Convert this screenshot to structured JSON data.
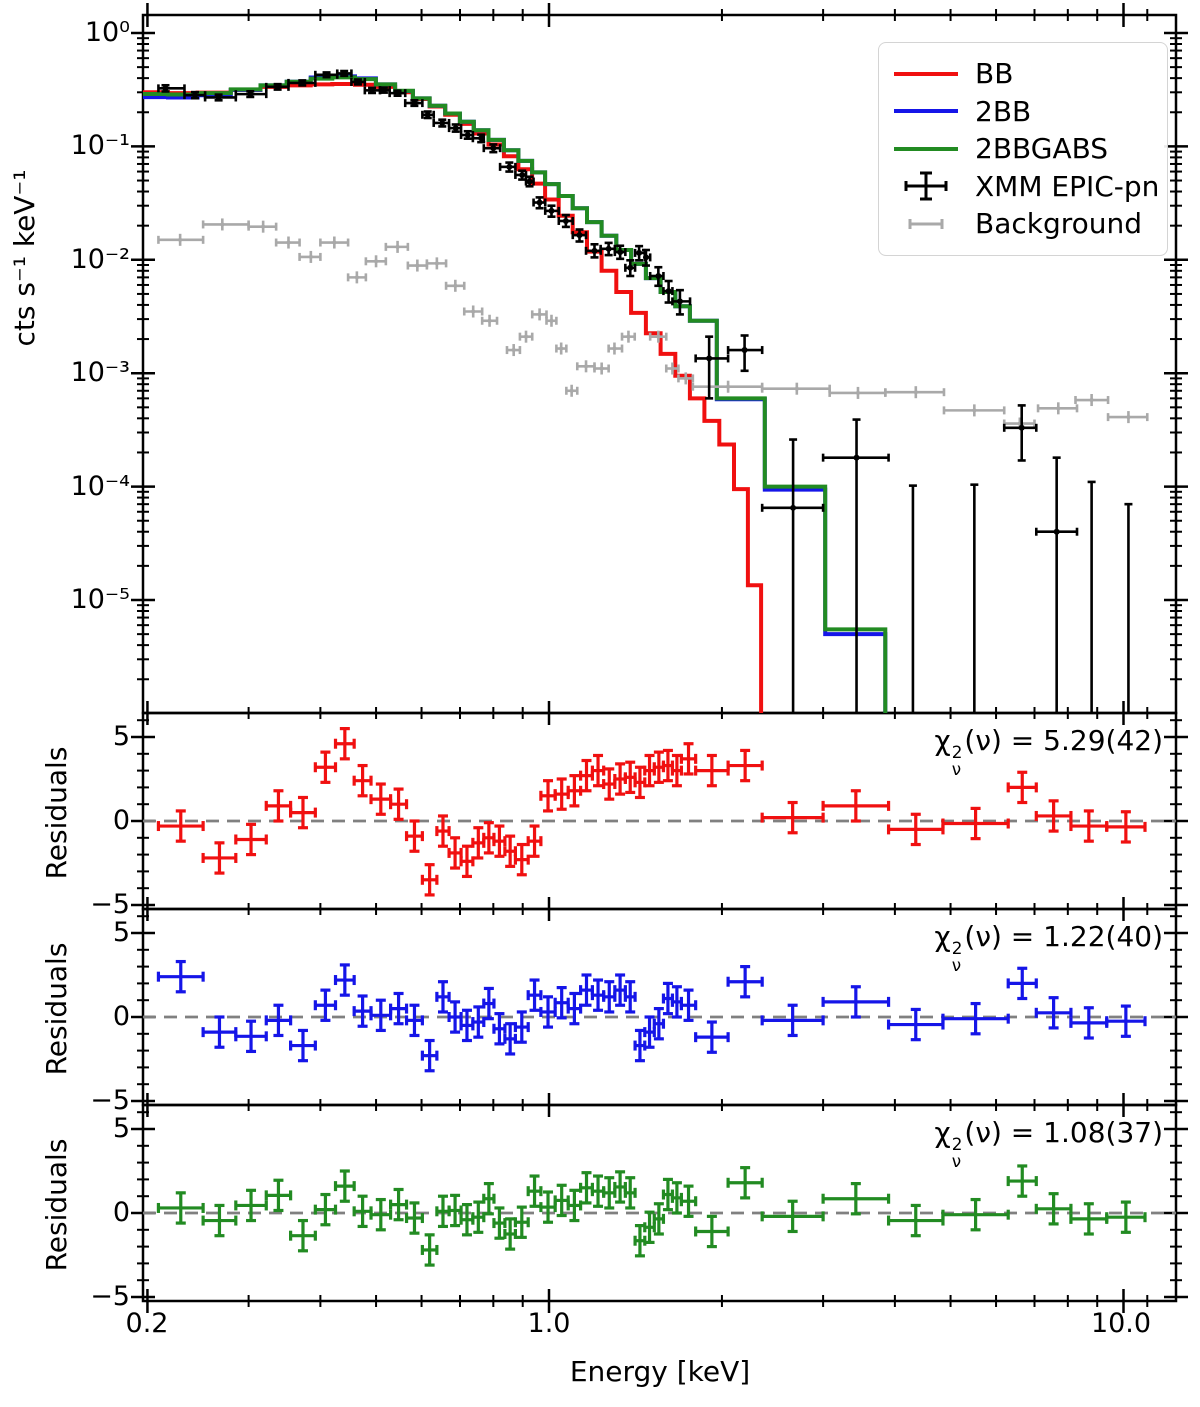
{
  "axes": {
    "xlabel": "Energy [keV]",
    "main_ylabel": "cts s⁻¹ keV⁻¹",
    "residual_ylabel": "Residuals",
    "x_tick_labels": [
      "0.2",
      "1.0",
      "10.0"
    ],
    "main_y_tick_labels": [
      "10⁰",
      "10⁻¹",
      "10⁻²",
      "10⁻³",
      "10⁻⁴",
      "10⁻⁵"
    ],
    "residual_y_tick_labels": [
      "5",
      "0",
      "−5"
    ]
  },
  "legend": {
    "items": [
      {
        "label": "BB",
        "color": "#f01010",
        "glyph": "line"
      },
      {
        "label": "2BB",
        "color": "#1515e8",
        "glyph": "line"
      },
      {
        "label": "2BBGABS",
        "color": "#228b22",
        "glyph": "line"
      },
      {
        "label": "XMM EPIC-pn",
        "color": "#000000",
        "glyph": "errorbar-cross"
      },
      {
        "label": "Background",
        "color": "#a9a9a9",
        "glyph": "errorbar-small"
      }
    ]
  },
  "panels": [
    {
      "chi": "χ",
      "sup": "2",
      "sub": "ν",
      "text": "(ν) = 5.29(42)"
    },
    {
      "chi": "χ",
      "sup": "2",
      "sub": "ν",
      "text": "(ν) = 1.22(40)"
    },
    {
      "chi": "χ",
      "sup": "2",
      "sub": "ν",
      "text": "(ν) = 1.08(37)"
    }
  ],
  "chart_data": {
    "type": "line",
    "description": "X-ray spectrum (log-log) with three model curves, source and background errorbar data, plus three residual sub-panels sharing the log energy axis",
    "x_axis": {
      "label": "Energy [keV]",
      "scale": "log",
      "range": [
        0.196,
        11.6
      ],
      "major_ticks": [
        0.2,
        1.0,
        10.0
      ]
    },
    "main_panel": {
      "ylabel": "cts s⁻¹ keV⁻¹",
      "scale": "log",
      "ylim": [
        1e-06,
        1.44
      ],
      "major_ticks": [
        1,
        0.1,
        0.01,
        0.001,
        0.0001,
        1e-05
      ]
    },
    "colors": {
      "bb": "#f01010",
      "bb2": "#1515e8",
      "bb2gabs": "#228b22",
      "data": "#000000",
      "background": "#a9a9a9",
      "zero_line": "#808080"
    },
    "models": [
      {
        "name": "BB",
        "color": "#f01010",
        "end": 2.34,
        "E": [
          0.205,
          0.23,
          0.26,
          0.3,
          0.33,
          0.37,
          0.4,
          0.44,
          0.48,
          0.52,
          0.56,
          0.6,
          0.64,
          0.68,
          0.72,
          0.76,
          0.81,
          0.86,
          0.91,
          0.96,
          1.01,
          1.07,
          1.13,
          1.2,
          1.27,
          1.35,
          1.43,
          1.52,
          1.61,
          1.71,
          1.81,
          1.92,
          2.04,
          2.16,
          2.28
        ],
        "F": [
          0.3,
          0.295,
          0.298,
          0.315,
          0.335,
          0.345,
          0.352,
          0.355,
          0.35,
          0.335,
          0.3,
          0.262,
          0.225,
          0.19,
          0.158,
          0.13,
          0.104,
          0.082,
          0.063,
          0.047,
          0.034,
          0.0245,
          0.0175,
          0.0118,
          0.008,
          0.0052,
          0.0034,
          0.00225,
          0.00148,
          0.00095,
          0.0006,
          0.00038,
          0.000235,
          9.5e-05,
          1.35e-05
        ]
      },
      {
        "name": "2BB",
        "color": "#1515e8",
        "end": 3.85,
        "E": [
          0.205,
          0.23,
          0.26,
          0.3,
          0.33,
          0.37,
          0.4,
          0.44,
          0.48,
          0.52,
          0.56,
          0.6,
          0.64,
          0.68,
          0.72,
          0.76,
          0.81,
          0.86,
          0.91,
          0.96,
          1.01,
          1.07,
          1.13,
          1.2,
          1.27,
          1.35,
          1.43,
          1.52,
          1.61,
          1.71,
          1.81,
          2.12,
          2.66,
          3.44
        ],
        "F": [
          0.272,
          0.27,
          0.283,
          0.315,
          0.345,
          0.372,
          0.405,
          0.414,
          0.398,
          0.352,
          0.308,
          0.265,
          0.228,
          0.195,
          0.165,
          0.139,
          0.114,
          0.0925,
          0.0745,
          0.059,
          0.0465,
          0.0365,
          0.0285,
          0.0215,
          0.0163,
          0.0122,
          0.0092,
          0.0069,
          0.0052,
          0.0039,
          0.0029,
          0.00059,
          9.4e-05,
          5e-06
        ]
      },
      {
        "name": "2BBGABS",
        "color": "#228b22",
        "end": 3.85,
        "E": [
          0.205,
          0.23,
          0.26,
          0.3,
          0.33,
          0.37,
          0.4,
          0.44,
          0.48,
          0.52,
          0.56,
          0.6,
          0.64,
          0.68,
          0.72,
          0.76,
          0.81,
          0.86,
          0.91,
          0.96,
          1.01,
          1.07,
          1.13,
          1.2,
          1.27,
          1.35,
          1.43,
          1.52,
          1.61,
          1.71,
          1.81,
          2.12,
          2.66,
          3.44
        ],
        "F": [
          0.29,
          0.287,
          0.295,
          0.318,
          0.345,
          0.372,
          0.396,
          0.406,
          0.392,
          0.352,
          0.31,
          0.265,
          0.228,
          0.195,
          0.165,
          0.139,
          0.114,
          0.0925,
          0.0745,
          0.059,
          0.0465,
          0.0365,
          0.0285,
          0.0215,
          0.0163,
          0.0122,
          0.0092,
          0.0069,
          0.0052,
          0.0039,
          0.0029,
          0.0006,
          0.0001,
          5.5e-06
        ]
      }
    ],
    "source": {
      "name": "XMM EPIC-pn",
      "points": [
        [
          0.209,
          0.215,
          0.232,
          0.305,
          0.325,
          0.346
        ],
        [
          0.232,
          0.242,
          0.252,
          0.266,
          0.283,
          0.301
        ],
        [
          0.252,
          0.266,
          0.285,
          0.255,
          0.27,
          0.286
        ],
        [
          0.285,
          0.302,
          0.322,
          0.273,
          0.289,
          0.306
        ],
        [
          0.322,
          0.337,
          0.352,
          0.317,
          0.335,
          0.354
        ],
        [
          0.352,
          0.372,
          0.392,
          0.345,
          0.363,
          0.382
        ],
        [
          0.392,
          0.41,
          0.428,
          0.408,
          0.428,
          0.449
        ],
        [
          0.428,
          0.44,
          0.453,
          0.419,
          0.44,
          0.462
        ],
        [
          0.453,
          0.465,
          0.478,
          0.352,
          0.37,
          0.389
        ],
        [
          0.478,
          0.492,
          0.508,
          0.296,
          0.312,
          0.328
        ],
        [
          0.508,
          0.516,
          0.528,
          0.298,
          0.314,
          0.33
        ],
        [
          0.528,
          0.545,
          0.562,
          0.28,
          0.295,
          0.31
        ],
        [
          0.562,
          0.583,
          0.602,
          0.228,
          0.241,
          0.255
        ],
        [
          0.602,
          0.615,
          0.63,
          0.178,
          0.19,
          0.203
        ],
        [
          0.63,
          0.652,
          0.67,
          0.15,
          0.161,
          0.172
        ],
        [
          0.67,
          0.688,
          0.703,
          0.135,
          0.145,
          0.156
        ],
        [
          0.703,
          0.722,
          0.737,
          0.117,
          0.126,
          0.136
        ],
        [
          0.737,
          0.762,
          0.77,
          0.109,
          0.118,
          0.127
        ],
        [
          0.77,
          0.8,
          0.822,
          0.089,
          0.0965,
          0.104
        ],
        [
          0.822,
          0.853,
          0.874,
          0.06,
          0.066,
          0.072
        ],
        [
          0.874,
          0.898,
          0.912,
          0.051,
          0.056,
          0.061
        ],
        [
          0.912,
          0.925,
          0.94,
          0.0445,
          0.049,
          0.054
        ],
        [
          0.94,
          0.963,
          0.985,
          0.0285,
          0.032,
          0.0355
        ],
        [
          0.985,
          1.01,
          1.04,
          0.024,
          0.027,
          0.03
        ],
        [
          1.04,
          1.07,
          1.1,
          0.0195,
          0.022,
          0.0248
        ],
        [
          1.1,
          1.13,
          1.16,
          0.0145,
          0.0165,
          0.0185
        ],
        [
          1.16,
          1.2,
          1.23,
          0.0105,
          0.012,
          0.0137
        ],
        [
          1.23,
          1.27,
          1.302,
          0.011,
          0.0125,
          0.0141
        ],
        [
          1.302,
          1.33,
          1.358,
          0.0102,
          0.0117,
          0.0133
        ],
        [
          1.358,
          1.385,
          1.412,
          0.0072,
          0.0085,
          0.0099
        ],
        [
          1.412,
          1.435,
          1.468,
          0.0099,
          0.0115,
          0.0132
        ],
        [
          1.468,
          1.475,
          1.5,
          0.0089,
          0.0105,
          0.0122
        ],
        [
          1.5,
          1.55,
          1.582,
          0.0059,
          0.0072,
          0.0086
        ],
        [
          1.582,
          1.615,
          1.64,
          0.0042,
          0.0053,
          0.0065
        ],
        [
          1.64,
          1.69,
          1.76,
          0.0033,
          0.0043,
          0.0054
        ],
        [
          1.8,
          1.9,
          2.05,
          0.0006,
          0.00135,
          0.0021
        ],
        [
          2.05,
          2.19,
          2.35,
          0.00105,
          0.0016,
          0.00215
        ],
        [
          2.35,
          2.66,
          3.0,
          1e-07,
          6.5e-05,
          0.00026
        ],
        [
          3.0,
          3.43,
          3.9,
          1e-07,
          0.00018,
          0.00039
        ],
        [
          6.2,
          6.65,
          7.05,
          0.00017,
          0.00033,
          0.00052
        ],
        [
          7.05,
          7.65,
          8.3,
          1e-07,
          4e-05,
          0.00018
        ]
      ],
      "limit_lines": [
        [
          4.3,
          0.000102
        ],
        [
          5.5,
          0.000104
        ],
        [
          8.8,
          0.00011
        ],
        [
          10.2,
          7e-05
        ]
      ]
    },
    "background": {
      "name": "Background",
      "points": [
        [
          0.209,
          0.228,
          0.25,
          0.015
        ],
        [
          0.25,
          0.27,
          0.3,
          0.0205
        ],
        [
          0.3,
          0.318,
          0.335,
          0.0196
        ],
        [
          0.335,
          0.352,
          0.368,
          0.0142
        ],
        [
          0.368,
          0.385,
          0.4,
          0.0106
        ],
        [
          0.4,
          0.423,
          0.447,
          0.0142
        ],
        [
          0.447,
          0.463,
          0.48,
          0.007
        ],
        [
          0.48,
          0.5,
          0.52,
          0.0097
        ],
        [
          0.52,
          0.545,
          0.568,
          0.013
        ],
        [
          0.568,
          0.59,
          0.613,
          0.0089
        ],
        [
          0.613,
          0.638,
          0.662,
          0.0093
        ],
        [
          0.662,
          0.687,
          0.712,
          0.0059
        ],
        [
          0.712,
          0.738,
          0.765,
          0.0035
        ],
        [
          0.765,
          0.788,
          0.812,
          0.0029
        ],
        [
          0.845,
          0.868,
          0.89,
          0.0016
        ],
        [
          0.89,
          0.912,
          0.935,
          0.0021
        ],
        [
          0.935,
          0.963,
          0.99,
          0.0033
        ],
        [
          0.99,
          1.01,
          1.03,
          0.0029
        ],
        [
          1.03,
          1.05,
          1.072,
          0.00165
        ],
        [
          1.072,
          1.095,
          1.12,
          0.0007
        ],
        [
          1.12,
          1.16,
          1.2,
          0.00115
        ],
        [
          1.2,
          1.235,
          1.27,
          0.0011
        ],
        [
          1.27,
          1.3,
          1.34,
          0.00165
        ],
        [
          1.34,
          1.375,
          1.41,
          0.0021
        ],
        [
          1.5,
          1.55,
          1.6,
          0.0021
        ],
        [
          1.6,
          1.64,
          1.68,
          0.0011
        ],
        [
          1.68,
          1.73,
          1.78,
          0.0009
        ],
        [
          1.78,
          2.05,
          2.35,
          0.00076
        ],
        [
          2.35,
          2.7,
          3.08,
          0.00073
        ],
        [
          3.08,
          3.45,
          3.85,
          0.00067
        ],
        [
          3.85,
          4.35,
          4.87,
          0.00068
        ],
        [
          4.87,
          5.5,
          6.2,
          0.00047
        ],
        [
          6.2,
          6.6,
          7.0,
          0.00036
        ],
        [
          7.1,
          7.7,
          8.3,
          0.00049
        ],
        [
          8.25,
          8.8,
          9.4,
          0.00058
        ],
        [
          9.4,
          10.2,
          11.0,
          0.00041
        ]
      ]
    },
    "residuals": {
      "ylim": [
        -6.4,
        5.2
      ],
      "major_ticks": [
        5,
        0,
        -5
      ],
      "bins": [
        [
          0.209,
          0.25
        ],
        [
          0.25,
          0.285
        ],
        [
          0.285,
          0.322
        ],
        [
          0.322,
          0.355
        ],
        [
          0.355,
          0.392
        ],
        [
          0.392,
          0.425
        ],
        [
          0.425,
          0.458
        ],
        [
          0.458,
          0.49
        ],
        [
          0.49,
          0.53
        ],
        [
          0.53,
          0.565
        ],
        [
          0.565,
          0.602
        ],
        [
          0.602,
          0.638
        ],
        [
          0.638,
          0.67
        ],
        [
          0.67,
          0.703
        ],
        [
          0.703,
          0.737
        ],
        [
          0.737,
          0.77
        ],
        [
          0.77,
          0.802
        ],
        [
          0.802,
          0.838
        ],
        [
          0.838,
          0.874
        ],
        [
          0.874,
          0.92
        ],
        [
          0.92,
          0.968
        ],
        [
          0.968,
          1.025
        ],
        [
          1.025,
          1.08
        ],
        [
          1.08,
          1.135
        ],
        [
          1.135,
          1.19
        ],
        [
          1.19,
          1.245
        ],
        [
          1.245,
          1.302
        ],
        [
          1.302,
          1.358
        ],
        [
          1.358,
          1.412
        ],
        [
          1.412,
          1.468
        ],
        [
          1.468,
          1.525
        ],
        [
          1.525,
          1.582
        ],
        [
          1.582,
          1.64
        ],
        [
          1.64,
          1.7
        ],
        [
          1.7,
          1.8
        ],
        [
          1.8,
          2.05
        ],
        [
          2.05,
          2.35
        ],
        [
          2.35,
          3.0
        ],
        [
          3.0,
          3.9
        ],
        [
          3.9,
          4.85
        ],
        [
          4.85,
          6.3
        ],
        [
          6.3,
          7.05
        ],
        [
          7.05,
          8.1
        ],
        [
          8.1,
          9.35
        ],
        [
          9.35,
          10.9
        ]
      ],
      "err": 0.9,
      "panels": [
        {
          "model": "BB",
          "chi2": "5.29(42)",
          "color": "#f01010",
          "values": [
            -0.3,
            -2.2,
            -1.1,
            0.9,
            0.5,
            3.2,
            4.6,
            2.4,
            1.3,
            1.0,
            -0.9,
            -3.5,
            -0.6,
            -1.9,
            -2.4,
            -1.3,
            -1.0,
            -1.2,
            -1.8,
            -2.3,
            -1.2,
            1.5,
            1.6,
            1.8,
            2.7,
            3.0,
            2.2,
            2.5,
            2.6,
            2.3,
            3.0,
            3.2,
            3.3,
            3.0,
            3.7,
            3.0,
            3.3,
            0.2,
            0.9,
            -0.5,
            -0.15,
            2.0,
            0.3,
            -0.3,
            -0.35
          ]
        },
        {
          "model": "2BB",
          "chi2": "1.22(40)",
          "color": "#1515e8",
          "values": [
            2.4,
            -0.9,
            -1.15,
            -0.2,
            -1.7,
            0.7,
            2.2,
            0.35,
            0.1,
            0.5,
            -0.2,
            -2.3,
            1.2,
            0.0,
            -0.5,
            -0.3,
            0.8,
            -0.7,
            -1.3,
            -0.6,
            1.3,
            0.3,
            0.85,
            0.5,
            1.6,
            1.3,
            1.2,
            1.6,
            1.2,
            -1.7,
            -0.9,
            -0.4,
            1.1,
            0.9,
            0.7,
            -1.2,
            2.1,
            -0.2,
            0.9,
            -0.45,
            -0.1,
            2.0,
            0.25,
            -0.35,
            -0.25
          ]
        },
        {
          "model": "2BBGABS",
          "chi2": "1.08(37)",
          "color": "#228b22",
          "values": [
            0.3,
            -0.45,
            0.45,
            1.05,
            -1.35,
            0.2,
            1.6,
            0.1,
            -0.1,
            0.5,
            -0.3,
            -2.2,
            0.1,
            0.15,
            -0.4,
            -0.25,
            0.85,
            -0.6,
            -1.25,
            -0.55,
            1.3,
            0.35,
            0.75,
            0.45,
            1.5,
            1.3,
            1.2,
            1.55,
            1.2,
            -1.65,
            -0.85,
            -0.35,
            1.1,
            0.9,
            0.7,
            -1.1,
            1.8,
            -0.2,
            0.85,
            -0.45,
            -0.1,
            1.9,
            0.25,
            -0.35,
            -0.25
          ]
        }
      ]
    }
  }
}
